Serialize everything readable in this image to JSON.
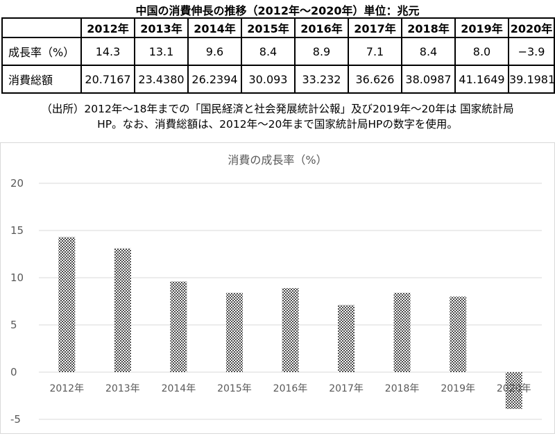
{
  "header": {
    "title": "中国の消費伸長の推移（2012年～2020年）単位：兆元"
  },
  "table": {
    "years": [
      "2012年",
      "2013年",
      "2014年",
      "2015年",
      "2016年",
      "2017年",
      "2018年",
      "2019年",
      "2020年"
    ],
    "rows": [
      {
        "label": "成長率（%）",
        "values": [
          "14.3",
          "13.1",
          "9.6",
          "8.4",
          "8.9",
          "7.1",
          "8.4",
          "8.0",
          "−3.9"
        ]
      },
      {
        "label": "消費総額",
        "values": [
          "20.7167",
          "23.4380",
          "26.2394",
          "30.093",
          "33.232",
          "36.626",
          "38.0987",
          "41.1649",
          "39.1981"
        ]
      }
    ]
  },
  "note": {
    "line1": "（出所）2012年～18年までの「国民経済と社会発展統計公報」及び2019年～20年は 国家統計局",
    "line2": "HP。なお、消費総額は、2012年～20年まで国家統計局HPの数字を使用。"
  },
  "chart_data": {
    "type": "bar",
    "title": "消費の成長率（%）",
    "categories": [
      "2012年",
      "2013年",
      "2014年",
      "2015年",
      "2016年",
      "2017年",
      "2018年",
      "2019年",
      "2020年"
    ],
    "values": [
      14.3,
      13.1,
      9.6,
      8.4,
      8.9,
      7.1,
      8.4,
      8.0,
      -3.9
    ],
    "ylim": [
      -5,
      20
    ],
    "yticks": [
      -5,
      0,
      5,
      10,
      15,
      20
    ],
    "grid": true,
    "legend": "none",
    "bar_pattern": "dotted",
    "colors": {
      "bar": "#555555",
      "grid": "#d9d9d9",
      "axis_text": "#595959"
    }
  }
}
